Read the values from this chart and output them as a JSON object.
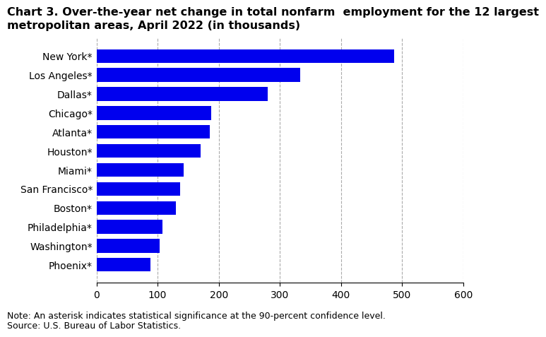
{
  "title_line1": "Chart 3. Over-the-year net change in total nonfarm  employment for the 12 largest",
  "title_line2": "metropolitan areas, April 2022 (in thousands)",
  "categories": [
    "Phoenix*",
    "Washington*",
    "Philadelphia*",
    "Boston*",
    "San Francisco*",
    "Miami*",
    "Houston*",
    "Atlanta*",
    "Chicago*",
    "Dallas*",
    "Los Angeles*",
    "New York*"
  ],
  "values": [
    88,
    103,
    108,
    130,
    137,
    143,
    170,
    185,
    188,
    280,
    333,
    487
  ],
  "bar_color": "#0000ee",
  "xlim": [
    0,
    600
  ],
  "xticks": [
    0,
    100,
    200,
    300,
    400,
    500,
    600
  ],
  "note": "Note: An asterisk indicates statistical significance at the 90-percent confidence level.",
  "source": "Source: U.S. Bureau of Labor Statistics.",
  "background_color": "#ffffff",
  "grid_color": "#aaaaaa",
  "title_fontsize": 11.5,
  "label_fontsize": 10,
  "tick_fontsize": 10,
  "note_fontsize": 9
}
